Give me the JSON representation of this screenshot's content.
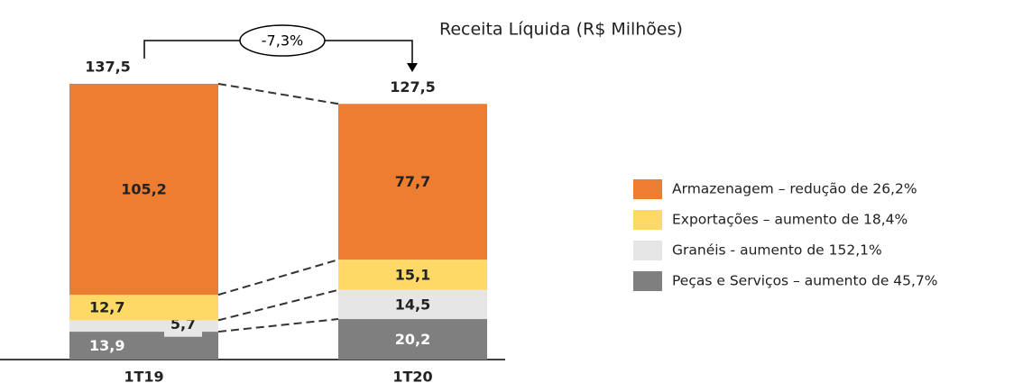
{
  "chart_data": {
    "type": "stacked_bar",
    "title": "Receita Líquida (R$ Milhões)",
    "categories": [
      "1T19",
      "1T20"
    ],
    "series": [
      {
        "name": "Armazenagem – redução de 26,2%",
        "color": "#ED7D31",
        "values": [
          105.2,
          77.7
        ],
        "value_labels": [
          "105,2",
          "77,7"
        ]
      },
      {
        "name": "Exportações – aumento de 18,4%",
        "color": "#FFD966",
        "values": [
          12.7,
          15.1
        ],
        "value_labels": [
          "12,7",
          "15,1"
        ]
      },
      {
        "name": "Granéis - aumento de 152,1%",
        "color": "#E7E6E6",
        "values": [
          5.7,
          14.5
        ],
        "value_labels": [
          "5,7",
          "14,5"
        ]
      },
      {
        "name": "Peças e Serviços – aumento de 45,7%",
        "color": "#7F7F7F",
        "values": [
          13.9,
          20.2
        ],
        "value_labels": [
          "13,9",
          "20,2"
        ]
      }
    ],
    "totals": [
      137.5,
      127.5
    ],
    "total_labels": [
      "137,5",
      "127,5"
    ],
    "annotation": "-7,3%",
    "legend": "right"
  }
}
